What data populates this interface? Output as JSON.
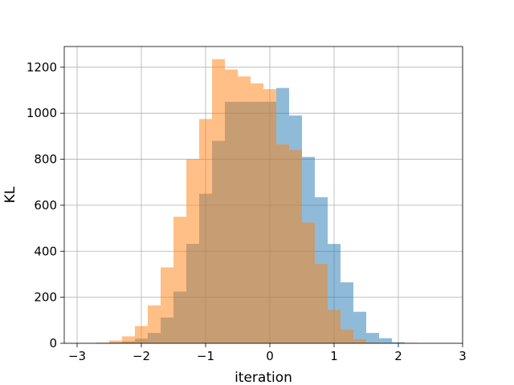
{
  "chart_data": {
    "type": "bar",
    "title": "",
    "xlabel": "iteration",
    "ylabel": "KL",
    "xlim": [
      -3.2,
      3.0
    ],
    "ylim": [
      0,
      1290
    ],
    "xticks": [
      -3,
      -2,
      -1,
      0,
      1,
      2,
      3
    ],
    "xtick_labels": [
      "−3",
      "−2",
      "−1",
      "0",
      "1",
      "2",
      "3"
    ],
    "yticks": [
      0,
      200,
      400,
      600,
      800,
      1000,
      1200
    ],
    "yticks_labels": [
      "0",
      "200",
      "400",
      "600",
      "800",
      "1000",
      "1200"
    ],
    "grid": true,
    "overlay": true,
    "series": [
      {
        "color": "#1f77b4",
        "opacity": 0.5,
        "bins": [
          {
            "x0": -2.7,
            "x1": -2.5,
            "y": 2
          },
          {
            "x0": -2.5,
            "x1": -2.3,
            "y": 4
          },
          {
            "x0": -2.3,
            "x1": -2.1,
            "y": 8
          },
          {
            "x0": -2.1,
            "x1": -1.9,
            "y": 20
          },
          {
            "x0": -1.9,
            "x1": -1.7,
            "y": 45
          },
          {
            "x0": -1.7,
            "x1": -1.5,
            "y": 112
          },
          {
            "x0": -1.5,
            "x1": -1.3,
            "y": 225
          },
          {
            "x0": -1.3,
            "x1": -1.1,
            "y": 432
          },
          {
            "x0": -1.1,
            "x1": -0.9,
            "y": 650
          },
          {
            "x0": -0.9,
            "x1": -0.7,
            "y": 880
          },
          {
            "x0": -0.7,
            "x1": -0.5,
            "y": 1050
          },
          {
            "x0": -0.5,
            "x1": -0.3,
            "y": 1050
          },
          {
            "x0": -0.3,
            "x1": -0.1,
            "y": 1050
          },
          {
            "x0": -0.1,
            "x1": 0.1,
            "y": 1050
          },
          {
            "x0": 0.1,
            "x1": 0.3,
            "y": 1110
          },
          {
            "x0": 0.3,
            "x1": 0.5,
            "y": 990
          },
          {
            "x0": 0.5,
            "x1": 0.7,
            "y": 810
          },
          {
            "x0": 0.7,
            "x1": 0.9,
            "y": 635
          },
          {
            "x0": 0.9,
            "x1": 1.1,
            "y": 432
          },
          {
            "x0": 1.1,
            "x1": 1.3,
            "y": 265
          },
          {
            "x0": 1.3,
            "x1": 1.5,
            "y": 137
          },
          {
            "x0": 1.5,
            "x1": 1.7,
            "y": 45
          },
          {
            "x0": 1.7,
            "x1": 1.9,
            "y": 22
          },
          {
            "x0": 1.9,
            "x1": 2.1,
            "y": 5
          },
          {
            "x0": 2.1,
            "x1": 2.3,
            "y": 2
          }
        ]
      },
      {
        "color": "#ff7f0e",
        "opacity": 0.5,
        "bins": [
          {
            "x0": -2.7,
            "x1": -2.5,
            "y": 3
          },
          {
            "x0": -2.5,
            "x1": -2.3,
            "y": 12
          },
          {
            "x0": -2.3,
            "x1": -2.1,
            "y": 30
          },
          {
            "x0": -2.1,
            "x1": -1.9,
            "y": 75
          },
          {
            "x0": -1.9,
            "x1": -1.7,
            "y": 165
          },
          {
            "x0": -1.7,
            "x1": -1.5,
            "y": 330
          },
          {
            "x0": -1.5,
            "x1": -1.3,
            "y": 550
          },
          {
            "x0": -1.3,
            "x1": -1.1,
            "y": 800
          },
          {
            "x0": -1.1,
            "x1": -0.9,
            "y": 975
          },
          {
            "x0": -0.9,
            "x1": -0.7,
            "y": 1235
          },
          {
            "x0": -0.7,
            "x1": -0.5,
            "y": 1190
          },
          {
            "x0": -0.5,
            "x1": -0.3,
            "y": 1160
          },
          {
            "x0": -0.3,
            "x1": -0.1,
            "y": 1130
          },
          {
            "x0": -0.1,
            "x1": 0.1,
            "y": 1105
          },
          {
            "x0": 0.1,
            "x1": 0.3,
            "y": 865
          },
          {
            "x0": 0.3,
            "x1": 0.5,
            "y": 840
          },
          {
            "x0": 0.5,
            "x1": 0.7,
            "y": 525
          },
          {
            "x0": 0.7,
            "x1": 0.9,
            "y": 345
          },
          {
            "x0": 0.9,
            "x1": 1.1,
            "y": 145
          },
          {
            "x0": 1.1,
            "x1": 1.3,
            "y": 60
          },
          {
            "x0": 1.3,
            "x1": 1.5,
            "y": 18
          },
          {
            "x0": 1.5,
            "x1": 1.7,
            "y": 4
          }
        ]
      }
    ]
  }
}
